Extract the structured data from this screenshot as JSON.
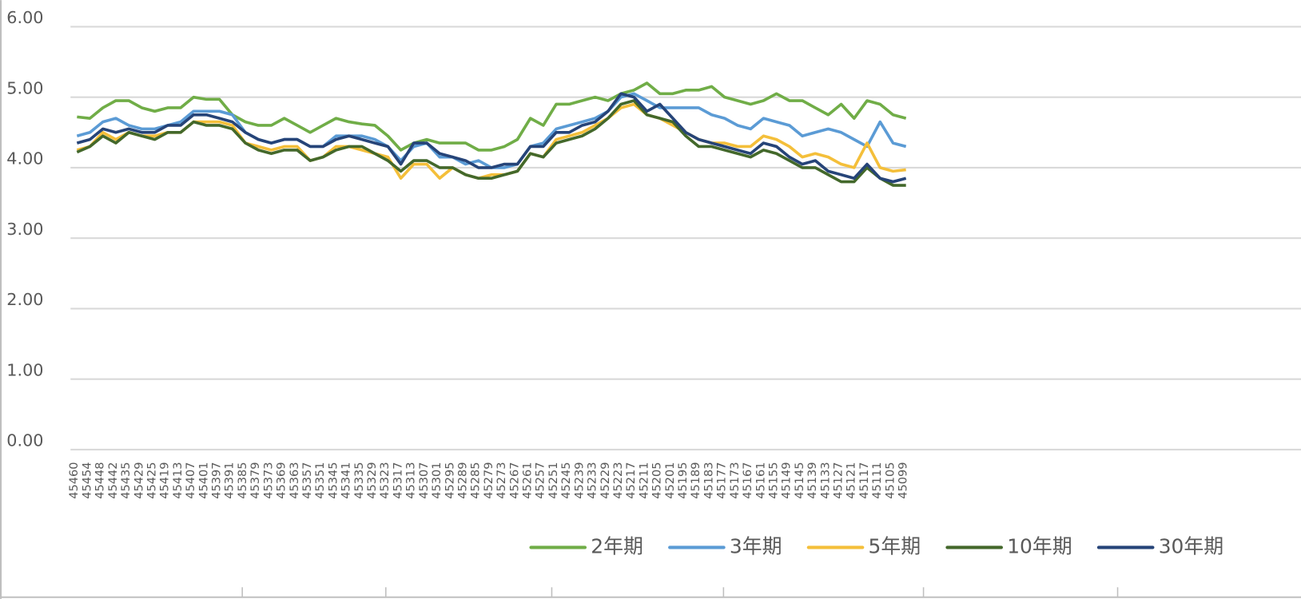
{
  "chart_data": {
    "type": "line",
    "categories": [
      "45460",
      "45454",
      "45448",
      "45442",
      "45435",
      "45429",
      "45425",
      "45419",
      "45413",
      "45407",
      "45401",
      "45397",
      "45391",
      "45385",
      "45379",
      "45373",
      "45369",
      "45363",
      "45357",
      "45351",
      "45345",
      "45341",
      "45335",
      "45329",
      "45323",
      "45317",
      "45313",
      "45307",
      "45301",
      "45295",
      "45289",
      "45285",
      "45279",
      "45273",
      "45267",
      "45261",
      "45257",
      "45251",
      "45245",
      "45239",
      "45233",
      "45229",
      "45223",
      "45217",
      "45211",
      "45205",
      "45201",
      "45195",
      "45189",
      "45183",
      "45177",
      "45173",
      "45167",
      "45161",
      "45155",
      "45149",
      "45145",
      "45139",
      "45133",
      "45127",
      "45121",
      "45117",
      "45111",
      "45105",
      "45099",
      null,
      null,
      null,
      null,
      null,
      null,
      null,
      null,
      null,
      null,
      null,
      null,
      null,
      null,
      null,
      null,
      null,
      null,
      null,
      null,
      null,
      null,
      null,
      null,
      null,
      null,
      null,
      null,
      null,
      null
    ],
    "series": [
      {
        "name": "2年期",
        "color": "#70ad47",
        "values": [
          4.72,
          4.7,
          4.85,
          4.95,
          4.95,
          4.85,
          4.8,
          4.85,
          4.85,
          5.0,
          4.97,
          4.97,
          4.75,
          4.65,
          4.6,
          4.6,
          4.7,
          4.6,
          4.5,
          4.6,
          4.7,
          4.65,
          4.62,
          4.6,
          4.45,
          4.25,
          4.35,
          4.4,
          4.35,
          4.35,
          4.35,
          4.25,
          4.25,
          4.3,
          4.4,
          4.7,
          4.6,
          4.9,
          4.9,
          4.95,
          5.0,
          4.95,
          5.05,
          5.1,
          5.2,
          5.05,
          5.05,
          5.1,
          5.1,
          5.15,
          5.0,
          4.95,
          4.9,
          4.95,
          5.05,
          4.95,
          4.95,
          4.85,
          4.75,
          4.9,
          4.7,
          4.95,
          4.9,
          4.75,
          4.7,
          null,
          null,
          null,
          null,
          null,
          null,
          null,
          null,
          null,
          null,
          null,
          null,
          null,
          null,
          null,
          null,
          null,
          null,
          null,
          null,
          null,
          null,
          null,
          null,
          null,
          null,
          null,
          null,
          null,
          null
        ]
      },
      {
        "name": "3年期",
        "color": "#5b9bd5",
        "values": [
          4.45,
          4.5,
          4.65,
          4.7,
          4.6,
          4.55,
          4.55,
          4.6,
          4.65,
          4.8,
          4.8,
          4.8,
          4.75,
          4.5,
          4.4,
          4.35,
          4.4,
          4.4,
          4.3,
          4.3,
          4.45,
          4.45,
          4.45,
          4.4,
          4.3,
          4.1,
          4.3,
          4.35,
          4.15,
          4.15,
          4.05,
          4.1,
          4.0,
          4.0,
          4.05,
          4.3,
          4.35,
          4.55,
          4.6,
          4.65,
          4.7,
          4.8,
          5.0,
          5.05,
          4.95,
          4.85,
          4.85,
          4.85,
          4.85,
          4.75,
          4.7,
          4.6,
          4.55,
          4.7,
          4.65,
          4.6,
          4.45,
          4.5,
          4.55,
          4.5,
          4.4,
          4.3,
          4.65,
          4.35,
          4.3,
          null,
          null,
          null,
          null,
          null,
          null,
          null,
          null,
          null,
          null,
          null,
          null,
          null,
          null,
          null,
          null,
          null,
          null,
          null,
          null,
          null,
          null,
          null,
          null,
          null,
          null,
          null,
          null,
          null,
          null
        ]
      },
      {
        "name": "5年期",
        "color": "#f4bf3a",
        "values": [
          4.25,
          4.3,
          4.5,
          4.4,
          4.5,
          4.45,
          4.45,
          4.5,
          4.5,
          4.65,
          4.65,
          4.65,
          4.6,
          4.35,
          4.3,
          4.25,
          4.3,
          4.3,
          4.1,
          4.15,
          4.3,
          4.3,
          4.25,
          4.2,
          4.15,
          3.85,
          4.05,
          4.05,
          3.85,
          4.0,
          3.9,
          3.85,
          3.9,
          3.9,
          3.95,
          4.2,
          4.15,
          4.4,
          4.45,
          4.5,
          4.6,
          4.7,
          4.85,
          4.9,
          4.75,
          4.7,
          4.6,
          4.5,
          4.4,
          4.35,
          4.35,
          4.3,
          4.3,
          4.45,
          4.4,
          4.3,
          4.15,
          4.2,
          4.15,
          4.05,
          4.0,
          4.35,
          4.0,
          3.95,
          3.97,
          null,
          null,
          null,
          null,
          null,
          null,
          null,
          null,
          null,
          null,
          null,
          null,
          null,
          null,
          null,
          null,
          null,
          null,
          null,
          null,
          null,
          null,
          null,
          null,
          null,
          null,
          null,
          null,
          null,
          null
        ]
      },
      {
        "name": "10年期",
        "color": "#43682b",
        "values": [
          4.22,
          4.3,
          4.45,
          4.35,
          4.5,
          4.45,
          4.4,
          4.5,
          4.5,
          4.65,
          4.6,
          4.6,
          4.55,
          4.35,
          4.25,
          4.2,
          4.25,
          4.25,
          4.1,
          4.15,
          4.25,
          4.3,
          4.3,
          4.2,
          4.1,
          3.95,
          4.1,
          4.1,
          4.0,
          4.0,
          3.9,
          3.85,
          3.85,
          3.9,
          3.95,
          4.2,
          4.15,
          4.35,
          4.4,
          4.45,
          4.55,
          4.7,
          4.9,
          4.95,
          4.75,
          4.7,
          4.65,
          4.45,
          4.3,
          4.3,
          4.25,
          4.2,
          4.15,
          4.25,
          4.2,
          4.1,
          4.0,
          4.0,
          3.9,
          3.8,
          3.8,
          4.0,
          3.85,
          3.75,
          3.75,
          null,
          null,
          null,
          null,
          null,
          null,
          null,
          null,
          null,
          null,
          null,
          null,
          null,
          null,
          null,
          null,
          null,
          null,
          null,
          null,
          null,
          null,
          null,
          null,
          null,
          null,
          null,
          null,
          null,
          null
        ]
      },
      {
        "name": "30年期",
        "color": "#264478",
        "values": [
          4.35,
          4.4,
          4.55,
          4.5,
          4.55,
          4.5,
          4.5,
          4.6,
          4.6,
          4.75,
          4.75,
          4.7,
          4.65,
          4.5,
          4.4,
          4.35,
          4.4,
          4.4,
          4.3,
          4.3,
          4.4,
          4.45,
          4.4,
          4.35,
          4.3,
          4.05,
          4.35,
          4.35,
          4.2,
          4.15,
          4.1,
          4.0,
          4.0,
          4.05,
          4.05,
          4.3,
          4.3,
          4.5,
          4.5,
          4.6,
          4.65,
          4.8,
          5.05,
          5.0,
          4.8,
          4.9,
          4.7,
          4.5,
          4.4,
          4.35,
          4.3,
          4.25,
          4.2,
          4.35,
          4.3,
          4.15,
          4.05,
          4.1,
          3.95,
          3.9,
          3.85,
          4.05,
          3.85,
          3.8,
          3.85,
          null,
          null,
          null,
          null,
          null,
          null,
          null,
          null,
          null,
          null,
          null,
          null,
          null,
          null,
          null,
          null,
          null,
          null,
          null,
          null,
          null,
          null,
          null,
          null,
          null,
          null,
          null,
          null,
          null,
          null
        ]
      }
    ],
    "ylim": [
      0,
      6
    ],
    "yticks": [
      {
        "value": 0,
        "label": "0.00"
      },
      {
        "value": 1,
        "label": "1.00"
      },
      {
        "value": 2,
        "label": "2.00"
      },
      {
        "value": 3,
        "label": "3.00"
      },
      {
        "value": 4,
        "label": "4.00"
      },
      {
        "value": 5,
        "label": "5.00"
      },
      {
        "value": 6,
        "label": "6.00"
      }
    ],
    "grid": true,
    "legend": "bottom-right"
  }
}
